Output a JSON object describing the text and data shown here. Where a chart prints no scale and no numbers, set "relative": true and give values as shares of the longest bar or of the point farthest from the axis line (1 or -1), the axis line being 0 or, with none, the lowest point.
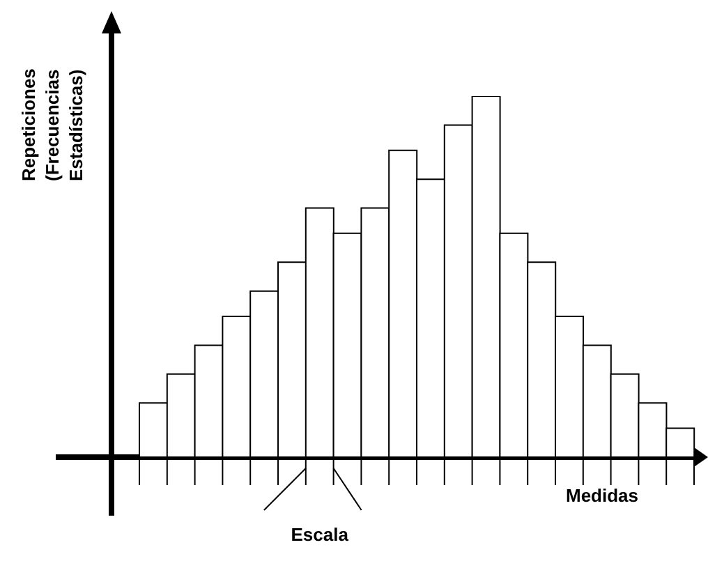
{
  "chart_data": {
    "type": "bar",
    "relative": true,
    "xlabel": "Medidas",
    "ylabel": "Repeticiones (Frecuencias Estadísticas)",
    "color": "#ffffff",
    "categories": [
      null,
      null,
      null,
      null,
      null,
      null,
      null,
      null,
      null,
      null,
      null,
      null,
      null,
      null,
      null,
      null,
      null,
      null,
      null,
      null
    ],
    "values": [
      0.15,
      0.23,
      0.31,
      0.39,
      0.46,
      0.54,
      0.69,
      0.62,
      0.69,
      0.85,
      0.77,
      0.92,
      1,
      0.62,
      0.54,
      0.39,
      0.31,
      0.23,
      0.15,
      0.08
    ],
    "annotations": [
      "Escala"
    ]
  }
}
